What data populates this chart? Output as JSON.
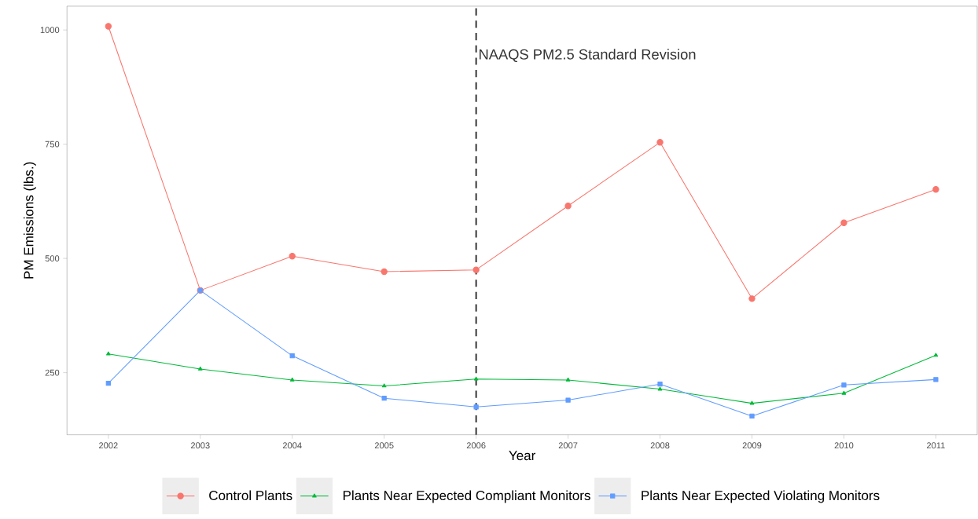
{
  "chart_data": {
    "type": "line",
    "xlabel": "Year",
    "ylabel": "PM Emissions (lbs.)",
    "x": [
      2002,
      2003,
      2004,
      2005,
      2006,
      2007,
      2008,
      2009,
      2010,
      2011
    ],
    "series": [
      {
        "name": "Control Plants",
        "color": "#f8766d",
        "marker": "circle",
        "values": [
          1008,
          430,
          505,
          471,
          475,
          615,
          754,
          412,
          578,
          651
        ]
      },
      {
        "name": "Plants Near Expected Compliant Monitors",
        "color": "#00ba38",
        "marker": "triangle",
        "values": [
          291,
          258,
          234,
          221,
          236,
          234,
          214,
          183,
          205,
          288
        ]
      },
      {
        "name": "Plants Near Expected Violating Monitors",
        "color": "#619cff",
        "marker": "square",
        "values": [
          227,
          430,
          287,
          194,
          175,
          190,
          225,
          155,
          223,
          235
        ]
      }
    ],
    "xlim": [
      2001.55,
      2011.45
    ],
    "ylim": [
      114,
      1052
    ],
    "xticks": [
      2002,
      2003,
      2004,
      2005,
      2006,
      2007,
      2008,
      2009,
      2010,
      2011
    ],
    "yticks": [
      250,
      500,
      750,
      1000
    ],
    "ref_lines": [
      {
        "axis": "x",
        "value": 2006,
        "label": "NAAQS PM2.5 Standard Revision",
        "color": "#333333",
        "line_style": "dashed"
      }
    ],
    "grid": false,
    "legend": "bottom"
  }
}
